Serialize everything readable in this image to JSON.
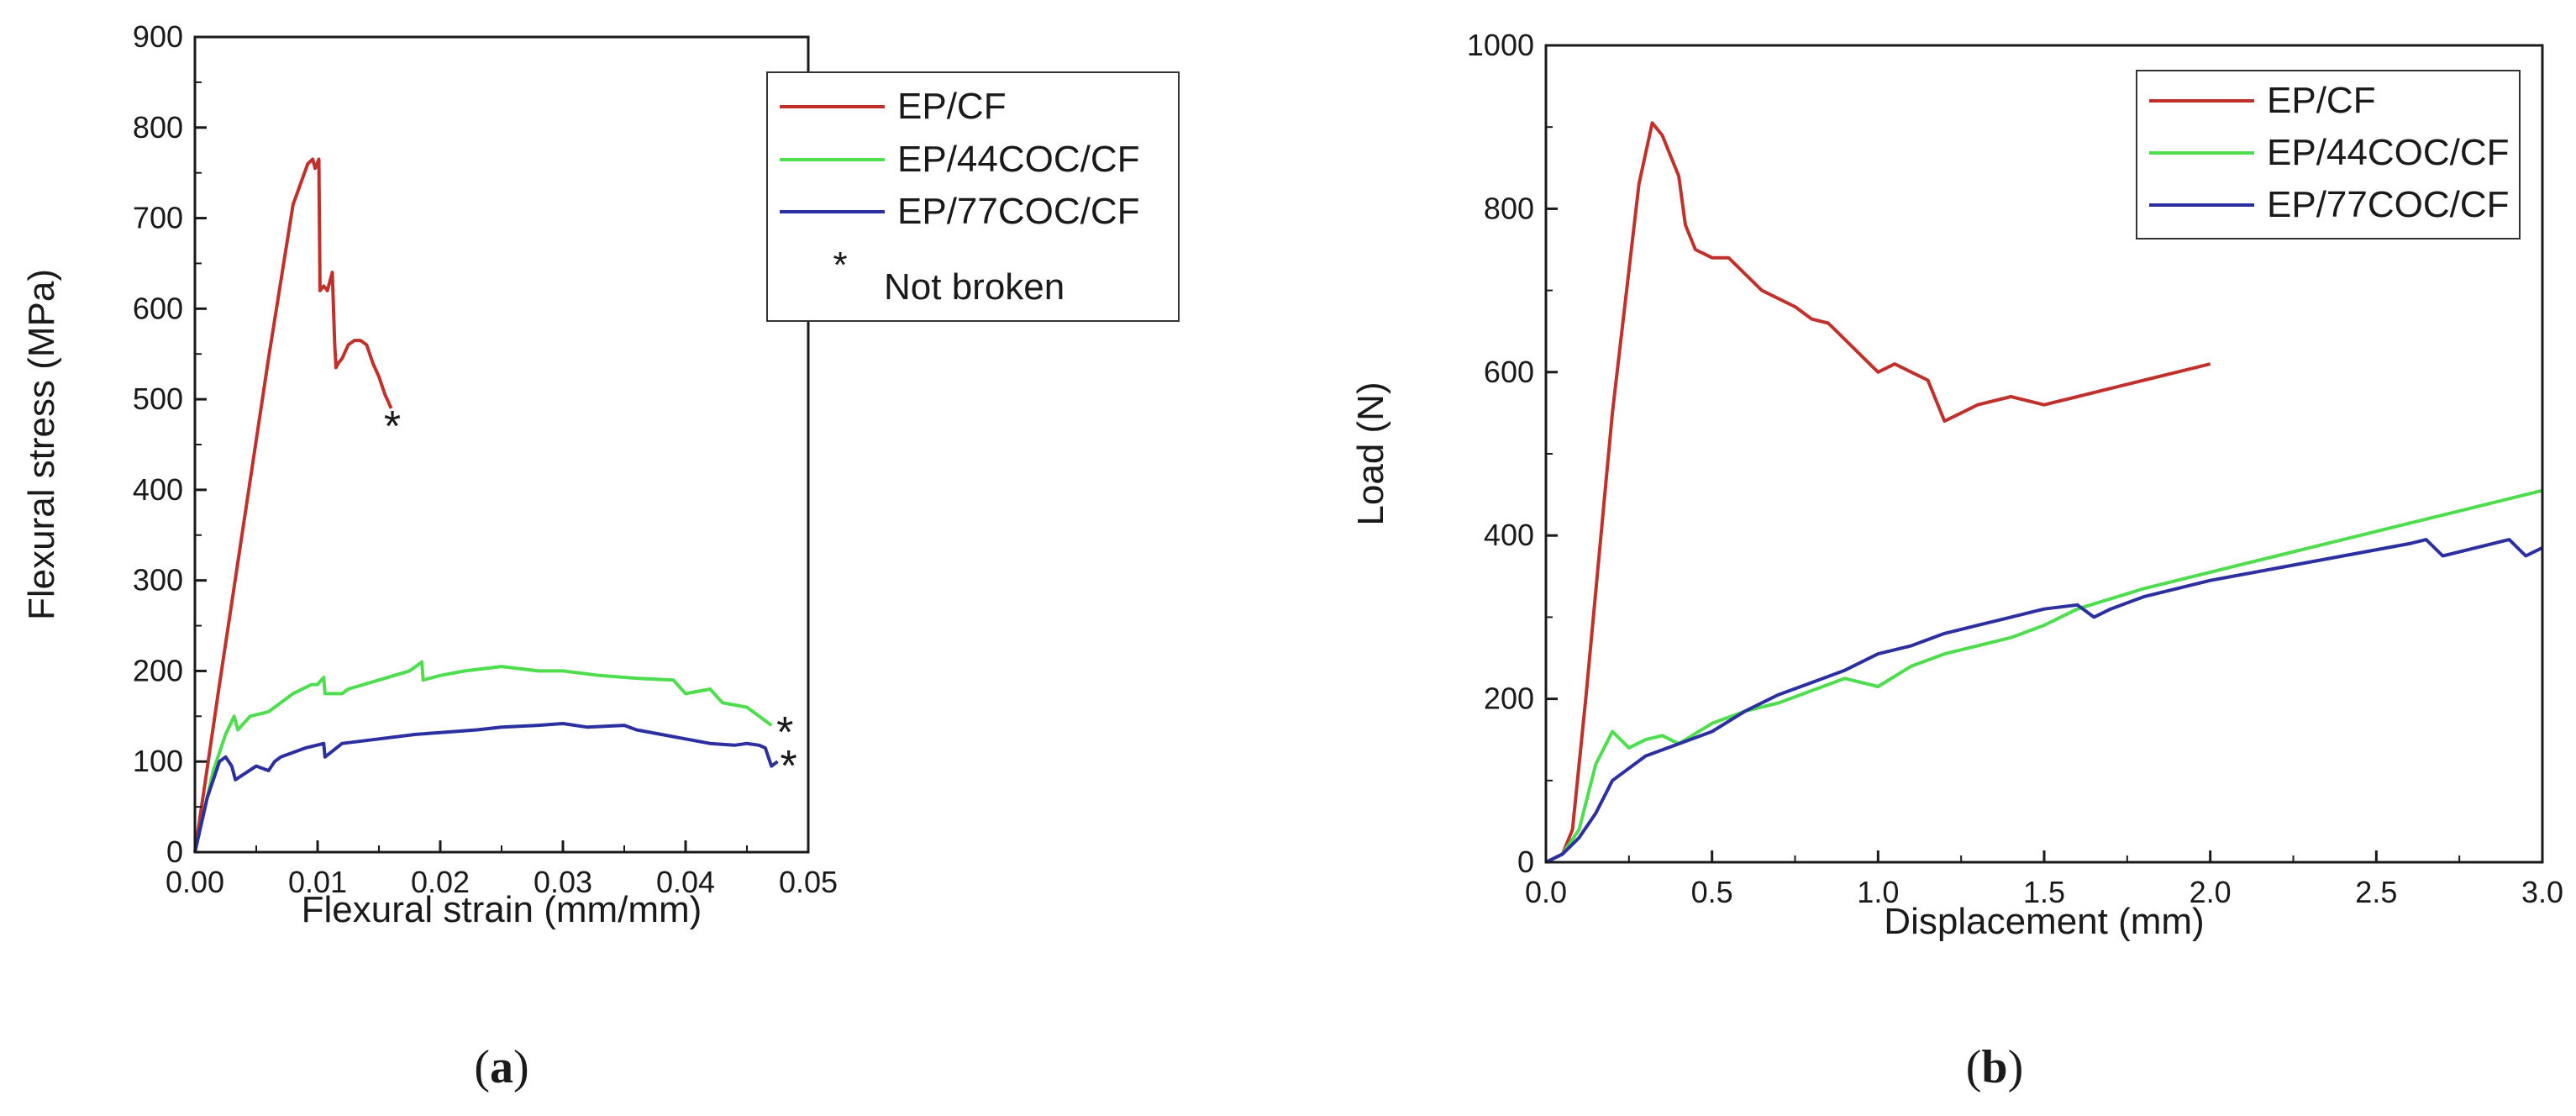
{
  "captions": {
    "a": "a",
    "b": "b"
  },
  "chart_data": [
    {
      "type": "line",
      "panel": "a",
      "xlabel": "Flexural strain (mm/mm)",
      "ylabel": "Flexural stress (MPa)",
      "xlim": [
        0,
        0.05
      ],
      "ylim": [
        0,
        900
      ],
      "xticks": [
        0.0,
        0.01,
        0.02,
        0.03,
        0.04,
        0.05
      ],
      "xtick_labels": [
        "0.00",
        "0.01",
        "0.02",
        "0.03",
        "0.04",
        "0.05"
      ],
      "yticks": [
        0,
        100,
        200,
        300,
        400,
        500,
        600,
        700,
        800,
        900
      ],
      "ytick_labels": [
        "0",
        "100",
        "200",
        "300",
        "400",
        "500",
        "600",
        "700",
        "800",
        "900"
      ],
      "legend_position": "top-right",
      "legend_note": {
        "symbol": "*",
        "label": "Not broken"
      },
      "markers": [
        {
          "symbol": "*",
          "x": 0.0161,
          "y": 478
        },
        {
          "symbol": "*",
          "x": 0.0481,
          "y": 140
        },
        {
          "symbol": "*",
          "x": 0.0484,
          "y": 103
        }
      ],
      "series": [
        {
          "name": "EP/CF",
          "color": "#c0312b",
          "x": [
            0,
            0.002,
            0.004,
            0.006,
            0.008,
            0.0092,
            0.0096,
            0.0098,
            0.0101,
            0.0102,
            0.0105,
            0.0108,
            0.011,
            0.0112,
            0.0114,
            0.0115,
            0.0117,
            0.012,
            0.0125,
            0.013,
            0.0135,
            0.014,
            0.0145,
            0.015,
            0.0155,
            0.016
          ],
          "y": [
            0,
            185,
            365,
            545,
            715,
            760,
            765,
            755,
            765,
            620,
            625,
            620,
            630,
            640,
            560,
            535,
            540,
            545,
            560,
            565,
            565,
            560,
            540,
            525,
            505,
            490
          ]
        },
        {
          "name": "EP/44COC/CF",
          "color": "#4ddd4d",
          "x": [
            0,
            0.0015,
            0.0025,
            0.0032,
            0.0035,
            0.0045,
            0.006,
            0.0065,
            0.008,
            0.0095,
            0.01,
            0.0105,
            0.0106,
            0.012,
            0.0125,
            0.015,
            0.0175,
            0.0185,
            0.0186,
            0.02,
            0.022,
            0.025,
            0.028,
            0.03,
            0.033,
            0.036,
            0.039,
            0.04,
            0.042,
            0.043,
            0.045,
            0.046,
            0.047
          ],
          "y": [
            0,
            90,
            130,
            150,
            135,
            150,
            155,
            160,
            175,
            185,
            185,
            193,
            175,
            175,
            180,
            190,
            200,
            210,
            190,
            195,
            200,
            205,
            200,
            200,
            195,
            192,
            190,
            175,
            180,
            165,
            160,
            150,
            140
          ]
        },
        {
          "name": "EP/77COC/CF",
          "color": "#2b2fa0",
          "x": [
            0,
            0.001,
            0.002,
            0.0025,
            0.003,
            0.0033,
            0.005,
            0.006,
            0.0065,
            0.007,
            0.009,
            0.0105,
            0.0106,
            0.012,
            0.015,
            0.018,
            0.02,
            0.023,
            0.025,
            0.028,
            0.03,
            0.032,
            0.035,
            0.036,
            0.038,
            0.04,
            0.042,
            0.044,
            0.045,
            0.046,
            0.0465,
            0.047,
            0.0475
          ],
          "y": [
            0,
            60,
            100,
            105,
            95,
            80,
            95,
            90,
            100,
            105,
            115,
            120,
            105,
            120,
            125,
            130,
            132,
            135,
            138,
            140,
            142,
            138,
            140,
            135,
            130,
            125,
            120,
            118,
            120,
            118,
            115,
            95,
            100
          ]
        }
      ]
    },
    {
      "type": "line",
      "panel": "b",
      "xlabel": "Displacement (mm)",
      "ylabel": "Load (N)",
      "xlim": [
        0,
        3.0
      ],
      "ylim": [
        0,
        1000
      ],
      "xticks": [
        0,
        0.5,
        1.0,
        1.5,
        2.0,
        2.5,
        3.0
      ],
      "xtick_labels": [
        "0.0",
        "0.5",
        "1.0",
        "1.5",
        "2.0",
        "2.5",
        "3.0"
      ],
      "yticks": [
        0,
        200,
        400,
        600,
        800,
        1000
      ],
      "ytick_labels": [
        "0",
        "200",
        "400",
        "600",
        "800",
        "1000"
      ],
      "legend_position": "top-right",
      "series": [
        {
          "name": "EP/CF",
          "color": "#c0312b",
          "x": [
            0,
            0.05,
            0.08,
            0.12,
            0.2,
            0.28,
            0.32,
            0.35,
            0.38,
            0.4,
            0.42,
            0.45,
            0.5,
            0.55,
            0.6,
            0.65,
            0.7,
            0.75,
            0.8,
            0.85,
            0.9,
            0.95,
            1.0,
            1.05,
            1.1,
            1.15,
            1.2,
            1.25,
            1.3,
            1.4,
            1.5,
            1.6,
            1.7,
            1.8,
            1.9,
            2.0
          ],
          "y": [
            0,
            10,
            40,
            200,
            550,
            830,
            905,
            890,
            860,
            840,
            780,
            750,
            740,
            740,
            720,
            700,
            690,
            680,
            665,
            660,
            640,
            620,
            600,
            610,
            600,
            590,
            540,
            550,
            560,
            570,
            560,
            570,
            580,
            590,
            600,
            610
          ]
        },
        {
          "name": "EP/44COC/CF",
          "color": "#4ddd4d",
          "x": [
            0,
            0.05,
            0.1,
            0.15,
            0.2,
            0.25,
            0.3,
            0.35,
            0.4,
            0.5,
            0.6,
            0.7,
            0.8,
            0.9,
            1.0,
            1.1,
            1.2,
            1.3,
            1.4,
            1.5,
            1.6,
            1.8,
            2.0,
            2.2,
            2.4,
            2.6,
            2.8,
            3.0
          ],
          "y": [
            0,
            10,
            40,
            120,
            160,
            140,
            150,
            155,
            145,
            170,
            185,
            195,
            210,
            225,
            215,
            240,
            255,
            265,
            275,
            290,
            310,
            335,
            355,
            375,
            395,
            415,
            435,
            455
          ]
        },
        {
          "name": "EP/77COC/CF",
          "color": "#2b2fa0",
          "x": [
            0,
            0.05,
            0.1,
            0.15,
            0.2,
            0.3,
            0.4,
            0.5,
            0.6,
            0.7,
            0.8,
            0.9,
            1.0,
            1.1,
            1.2,
            1.3,
            1.4,
            1.5,
            1.6,
            1.65,
            1.7,
            1.8,
            2.0,
            2.2,
            2.4,
            2.6,
            2.65,
            2.7,
            2.8,
            2.9,
            2.95,
            3.0
          ],
          "y": [
            0,
            10,
            30,
            60,
            100,
            130,
            145,
            160,
            185,
            205,
            220,
            235,
            255,
            265,
            280,
            290,
            300,
            310,
            315,
            300,
            310,
            325,
            345,
            360,
            375,
            390,
            395,
            375,
            385,
            395,
            375,
            385
          ]
        }
      ]
    }
  ]
}
